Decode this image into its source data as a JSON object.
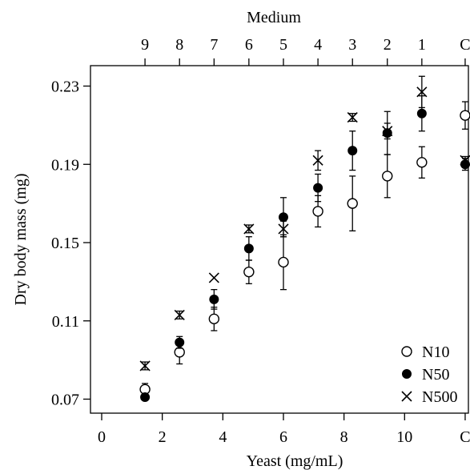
{
  "chart_data": {
    "type": "scatter",
    "title": "",
    "xlabel": "Yeast (mg/mL)",
    "ylabel": "Dry body mass (mg)",
    "top_axis_title": "Medium",
    "ylim": [
      0.062,
      0.247
    ],
    "xlim": [
      -1.1,
      12.4
    ],
    "x_ticks": [
      {
        "value": 0,
        "label": "0"
      },
      {
        "value": 2,
        "label": "2"
      },
      {
        "value": 4,
        "label": "4"
      },
      {
        "value": 6,
        "label": "6"
      },
      {
        "value": 8,
        "label": "8"
      },
      {
        "value": 10,
        "label": "10"
      },
      {
        "value": 12,
        "label": "C"
      }
    ],
    "y_ticks": [
      {
        "value": 0.07,
        "label": "0.07"
      },
      {
        "value": 0.11,
        "label": "0.11"
      },
      {
        "value": 0.15,
        "label": "0.15"
      },
      {
        "value": 0.19,
        "label": "0.19"
      },
      {
        "value": 0.23,
        "label": "0.23"
      }
    ],
    "top_ticks": [
      {
        "value": 1.43,
        "label": "9"
      },
      {
        "value": 2.57,
        "label": "8"
      },
      {
        "value": 3.71,
        "label": "7"
      },
      {
        "value": 4.86,
        "label": "6"
      },
      {
        "value": 6.0,
        "label": "5"
      },
      {
        "value": 7.14,
        "label": "4"
      },
      {
        "value": 8.28,
        "label": "3"
      },
      {
        "value": 9.43,
        "label": "2"
      },
      {
        "value": 10.57,
        "label": "1"
      },
      {
        "value": 12,
        "label": "C"
      }
    ],
    "legend_position": "bottom-right",
    "series": [
      {
        "name": "N10",
        "marker": "open-circle",
        "points": [
          {
            "x": 1.43,
            "y": 0.075,
            "err": 0.003
          },
          {
            "x": 2.57,
            "y": 0.094,
            "err": 0.006
          },
          {
            "x": 3.71,
            "y": 0.111,
            "err": 0.006
          },
          {
            "x": 4.86,
            "y": 0.135,
            "err": 0.006
          },
          {
            "x": 6.0,
            "y": 0.14,
            "err": 0.014
          },
          {
            "x": 7.14,
            "y": 0.166,
            "err": 0.008
          },
          {
            "x": 8.28,
            "y": 0.17,
            "err": 0.014
          },
          {
            "x": 9.43,
            "y": 0.184,
            "err": 0.011
          },
          {
            "x": 10.57,
            "y": 0.191,
            "err": 0.008
          },
          {
            "x": 12,
            "y": 0.215,
            "err": 0.007
          }
        ]
      },
      {
        "name": "N50",
        "marker": "filled-circle",
        "points": [
          {
            "x": 1.43,
            "y": 0.071,
            "err": 0.0
          },
          {
            "x": 2.57,
            "y": 0.099,
            "err": 0.003
          },
          {
            "x": 3.71,
            "y": 0.121,
            "err": 0.005
          },
          {
            "x": 4.86,
            "y": 0.147,
            "err": 0.006
          },
          {
            "x": 6.0,
            "y": 0.163,
            "err": 0.01
          },
          {
            "x": 7.14,
            "y": 0.178,
            "err": 0.007
          },
          {
            "x": 8.28,
            "y": 0.197,
            "err": 0.01
          },
          {
            "x": 9.43,
            "y": 0.206,
            "err": 0.011
          },
          {
            "x": 10.57,
            "y": 0.216,
            "err": 0.009
          },
          {
            "x": 12,
            "y": 0.19,
            "err": 0.003
          }
        ]
      },
      {
        "name": "N500",
        "marker": "x",
        "points": [
          {
            "x": 1.43,
            "y": 0.087,
            "err": 0.002
          },
          {
            "x": 2.57,
            "y": 0.113,
            "err": 0.002
          },
          {
            "x": 3.71,
            "y": 0.132,
            "err": 0.0
          },
          {
            "x": 4.86,
            "y": 0.157,
            "err": 0.002
          },
          {
            "x": 6.0,
            "y": 0.157,
            "err": 0.004
          },
          {
            "x": 7.14,
            "y": 0.192,
            "err": 0.005
          },
          {
            "x": 8.28,
            "y": 0.214,
            "err": 0.002
          },
          {
            "x": 9.43,
            "y": 0.207,
            "err": 0.004
          },
          {
            "x": 10.57,
            "y": 0.227,
            "err": 0.008
          },
          {
            "x": 12,
            "y": 0.192,
            "err": 0.002
          }
        ]
      }
    ]
  }
}
